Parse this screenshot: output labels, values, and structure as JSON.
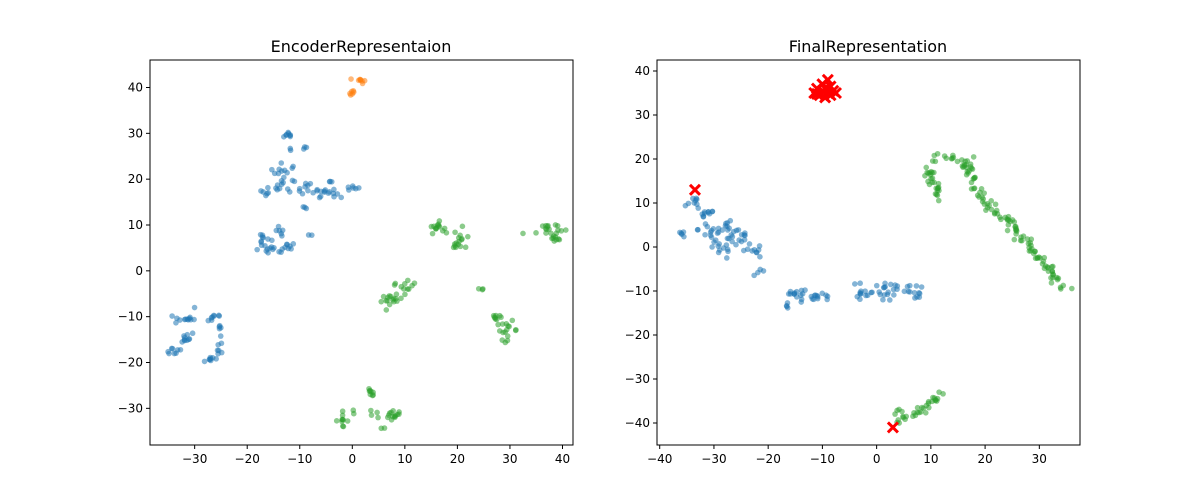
{
  "chart_data": [
    {
      "type": "scatter",
      "title": "EncoderRepresentaion",
      "xlabel": "",
      "ylabel": "",
      "xlim": [
        -38.5,
        42
      ],
      "ylim": [
        -38,
        46
      ],
      "xticks": [
        -30,
        -20,
        -10,
        0,
        10,
        20,
        30,
        40
      ],
      "yticks": [
        -30,
        -20,
        -10,
        0,
        10,
        20,
        30,
        40
      ],
      "grid": false,
      "series": [
        {
          "color": "#1f77b4",
          "marker": "circle",
          "clusters": [
            {
              "cx": -12,
              "cy": 29.5,
              "sx": 0.5,
              "sy": 0.5,
              "n": 8
            },
            {
              "cx": -9,
              "cy": 27,
              "sx": 0.3,
              "sy": 0.3,
              "n": 3
            },
            {
              "cx": -12,
              "cy": 26.5,
              "sx": 0.3,
              "sy": 0.3,
              "n": 2
            },
            {
              "cx": -13,
              "cy": 21.5,
              "sx": 1.4,
              "sy": 1.0,
              "n": 14
            },
            {
              "cx": -15,
              "cy": 17.5,
              "sx": 1.2,
              "sy": 0.8,
              "n": 10
            },
            {
              "cx": -8,
              "cy": 18,
              "sx": 2.5,
              "sy": 1.0,
              "n": 20
            },
            {
              "cx": -6,
              "cy": 17,
              "sx": 1.0,
              "sy": 0.5,
              "n": 6
            },
            {
              "cx": 0,
              "cy": 18,
              "sx": 0.7,
              "sy": 0.3,
              "n": 6
            },
            {
              "cx": -3,
              "cy": 16.5,
              "sx": 0.8,
              "sy": 0.5,
              "n": 5
            },
            {
              "cx": -9,
              "cy": 14,
              "sx": 0.3,
              "sy": 0.3,
              "n": 3
            },
            {
              "cx": -17,
              "cy": 7,
              "sx": 0.8,
              "sy": 0.6,
              "n": 8
            },
            {
              "cx": -14,
              "cy": 8,
              "sx": 0.5,
              "sy": 1.0,
              "n": 6
            },
            {
              "cx": -15.5,
              "cy": 4.5,
              "sx": 1.5,
              "sy": 0.5,
              "n": 12
            },
            {
              "cx": -12,
              "cy": 5.5,
              "sx": 0.7,
              "sy": 0.5,
              "n": 8
            },
            {
              "cx": -8,
              "cy": 7.5,
              "sx": 0.2,
              "sy": 0.3,
              "n": 2
            },
            {
              "cx": -32,
              "cy": -10.5,
              "sx": 1.0,
              "sy": 0.6,
              "n": 12
            },
            {
              "cx": -32.5,
              "cy": -14.5,
              "sx": 1.4,
              "sy": 0.6,
              "n": 10
            },
            {
              "cx": -34,
              "cy": -17.5,
              "sx": 1.0,
              "sy": 0.5,
              "n": 8
            },
            {
              "cx": -30,
              "cy": -8,
              "sx": 0.2,
              "sy": 0.2,
              "n": 1
            },
            {
              "cx": -26.5,
              "cy": -10,
              "sx": 1.0,
              "sy": 0.7,
              "n": 8
            },
            {
              "cx": -25,
              "cy": -13,
              "sx": 0.3,
              "sy": 1.0,
              "n": 5
            },
            {
              "cx": -25,
              "cy": -16.5,
              "sx": 0.3,
              "sy": 1.0,
              "n": 5
            },
            {
              "cx": -27,
              "cy": -19,
              "sx": 1.0,
              "sy": 0.6,
              "n": 9
            }
          ]
        },
        {
          "color": "#ff7f0e",
          "marker": "circle",
          "clusters": [
            {
              "cx": 1.5,
              "cy": 41.5,
              "sx": 0.5,
              "sy": 0.3,
              "n": 8
            },
            {
              "cx": 0.1,
              "cy": 39,
              "sx": 0.4,
              "sy": 0.3,
              "n": 6
            }
          ]
        },
        {
          "color": "#2ca02c",
          "marker": "circle",
          "clusters": [
            {
              "cx": 16,
              "cy": 9.5,
              "sx": 0.7,
              "sy": 0.6,
              "n": 14
            },
            {
              "cx": 21,
              "cy": 7,
              "sx": 0.8,
              "sy": 1.2,
              "n": 10
            },
            {
              "cx": 19.5,
              "cy": 5.5,
              "sx": 0.6,
              "sy": 0.4,
              "n": 6
            },
            {
              "cx": 32.5,
              "cy": 8,
              "sx": 0.2,
              "sy": 0.2,
              "n": 1
            },
            {
              "cx": 37,
              "cy": 9,
              "sx": 1.0,
              "sy": 1.0,
              "n": 14
            },
            {
              "cx": 39,
              "cy": 7.5,
              "sx": 0.8,
              "sy": 0.8,
              "n": 10
            },
            {
              "cx": 24.5,
              "cy": -3.5,
              "sx": 0.3,
              "sy": 0.5,
              "n": 3
            },
            {
              "cx": 10.5,
              "cy": -3,
              "sx": 0.8,
              "sy": 1.0,
              "n": 10
            },
            {
              "cx": 7.5,
              "cy": -6.5,
              "sx": 1.0,
              "sy": 0.6,
              "n": 16
            },
            {
              "cx": 8,
              "cy": -3,
              "sx": 0.2,
              "sy": 0.2,
              "n": 1
            },
            {
              "cx": 27.5,
              "cy": -10,
              "sx": 0.6,
              "sy": 0.5,
              "n": 8
            },
            {
              "cx": 29.5,
              "cy": -13,
              "sx": 1.0,
              "sy": 1.0,
              "n": 16
            },
            {
              "cx": 3.5,
              "cy": -26.5,
              "sx": 0.5,
              "sy": 0.4,
              "n": 8
            },
            {
              "cx": -2,
              "cy": -32.5,
              "sx": 0.6,
              "sy": 0.8,
              "n": 10
            },
            {
              "cx": 0,
              "cy": -31,
              "sx": 0.3,
              "sy": 0.3,
              "n": 2
            },
            {
              "cx": 4,
              "cy": -31,
              "sx": 0.4,
              "sy": 0.4,
              "n": 4
            },
            {
              "cx": 7.5,
              "cy": -32.5,
              "sx": 1.0,
              "sy": 1.0,
              "n": 12
            },
            {
              "cx": 9,
              "cy": -31,
              "sx": 0.3,
              "sy": 0.3,
              "n": 3
            }
          ]
        }
      ]
    },
    {
      "type": "scatter",
      "title": "FinalRepresentation",
      "xlabel": "",
      "ylabel": "",
      "xlim": [
        -40.5,
        37.5
      ],
      "ylim": [
        -45,
        42.5
      ],
      "xticks": [
        -40,
        -30,
        -20,
        -10,
        0,
        10,
        20,
        30
      ],
      "yticks": [
        -40,
        -30,
        -20,
        -10,
        0,
        10,
        20,
        30,
        40
      ],
      "grid": false,
      "series": [
        {
          "color": "#1f77b4",
          "marker": "circle",
          "clusters": [
            {
              "cx": -34,
              "cy": 10,
              "sx": 0.8,
              "sy": 1.0,
              "n": 8
            },
            {
              "cx": -31.5,
              "cy": 8,
              "sx": 1.0,
              "sy": 1.0,
              "n": 10
            },
            {
              "cx": -36,
              "cy": 3,
              "sx": 0.5,
              "sy": 1.0,
              "n": 5
            },
            {
              "cx": -30.5,
              "cy": 4,
              "sx": 1.2,
              "sy": 1.2,
              "n": 12
            },
            {
              "cx": -27,
              "cy": 4.5,
              "sx": 1.2,
              "sy": 1.2,
              "n": 10
            },
            {
              "cx": -29,
              "cy": 0,
              "sx": 1.5,
              "sy": 1.5,
              "n": 18
            },
            {
              "cx": -25,
              "cy": 2,
              "sx": 1.0,
              "sy": 1.0,
              "n": 10
            },
            {
              "cx": -23,
              "cy": -1,
              "sx": 1.0,
              "sy": 0.8,
              "n": 10
            },
            {
              "cx": -21,
              "cy": -6,
              "sx": 0.6,
              "sy": 0.5,
              "n": 4
            },
            {
              "cx": -15,
              "cy": -10.5,
              "sx": 1.2,
              "sy": 0.5,
              "n": 12
            },
            {
              "cx": -10.5,
              "cy": -11.5,
              "sx": 1.5,
              "sy": 0.4,
              "n": 14
            },
            {
              "cx": -16.5,
              "cy": -13.5,
              "sx": 0.3,
              "sy": 0.6,
              "n": 4
            },
            {
              "cx": -4,
              "cy": -8.5,
              "sx": 0.4,
              "sy": 0.4,
              "n": 2
            },
            {
              "cx": -2,
              "cy": -10.5,
              "sx": 1.0,
              "sy": 0.8,
              "n": 10
            },
            {
              "cx": 2,
              "cy": -11,
              "sx": 1.0,
              "sy": 0.7,
              "n": 10
            },
            {
              "cx": 1.5,
              "cy": -8.5,
              "sx": 1.5,
              "sy": 0.5,
              "n": 8
            },
            {
              "cx": 6,
              "cy": -9.5,
              "sx": 1.0,
              "sy": 0.5,
              "n": 8
            },
            {
              "cx": 8,
              "cy": -11,
              "sx": 0.5,
              "sy": 0.8,
              "n": 6
            }
          ]
        },
        {
          "color": "#2ca02c",
          "marker": "circle",
          "path_clusters": [
            {
              "x1": 9.5,
              "y1": 18,
              "x2": 11.5,
              "y2": 11.5,
              "jitter": 0.5,
              "n": 26
            },
            {
              "x1": 10,
              "y1": 20,
              "x2": 11.5,
              "y2": 21,
              "jitter": 0.3,
              "n": 4
            },
            {
              "x1": 13,
              "y1": 21.5,
              "x2": 17,
              "y2": 17,
              "jitter": 0.6,
              "n": 14
            },
            {
              "x1": 16,
              "y1": 20,
              "x2": 20,
              "y2": 9.5,
              "jitter": 0.6,
              "n": 30
            },
            {
              "x1": 20,
              "y1": 9.5,
              "x2": 24,
              "y2": 6,
              "jitter": 0.5,
              "n": 14
            },
            {
              "x1": 24,
              "y1": 6,
              "x2": 34.5,
              "y2": -9,
              "jitter": 0.7,
              "n": 60
            },
            {
              "x1": 3.5,
              "y1": -40,
              "x2": 8,
              "y2": -37,
              "jitter": 0.5,
              "n": 12
            },
            {
              "x1": 8,
              "y1": -37,
              "x2": 12,
              "y2": -33.5,
              "jitter": 0.6,
              "n": 18
            },
            {
              "x1": 3.5,
              "y1": -38,
              "x2": 4.5,
              "y2": -37.5,
              "jitter": 0.4,
              "n": 4
            }
          ]
        },
        {
          "color": "#ff0000",
          "marker": "x",
          "points": [
            [
              -9.5,
              36
            ],
            [
              -9,
              35
            ],
            [
              -10,
              35.5
            ],
            [
              -8.5,
              36.5
            ],
            [
              -11,
              36
            ],
            [
              -10.5,
              34.5
            ],
            [
              -8,
              35.5
            ],
            [
              -9.5,
              34
            ],
            [
              -11.5,
              35
            ],
            [
              -7.5,
              35
            ],
            [
              -9,
              38
            ],
            [
              -10,
              37
            ],
            [
              -8.5,
              34.5
            ],
            [
              -11,
              34.8
            ],
            [
              -9.2,
              36.2
            ],
            [
              -33.5,
              13
            ],
            [
              3,
              -41
            ]
          ]
        }
      ]
    }
  ]
}
